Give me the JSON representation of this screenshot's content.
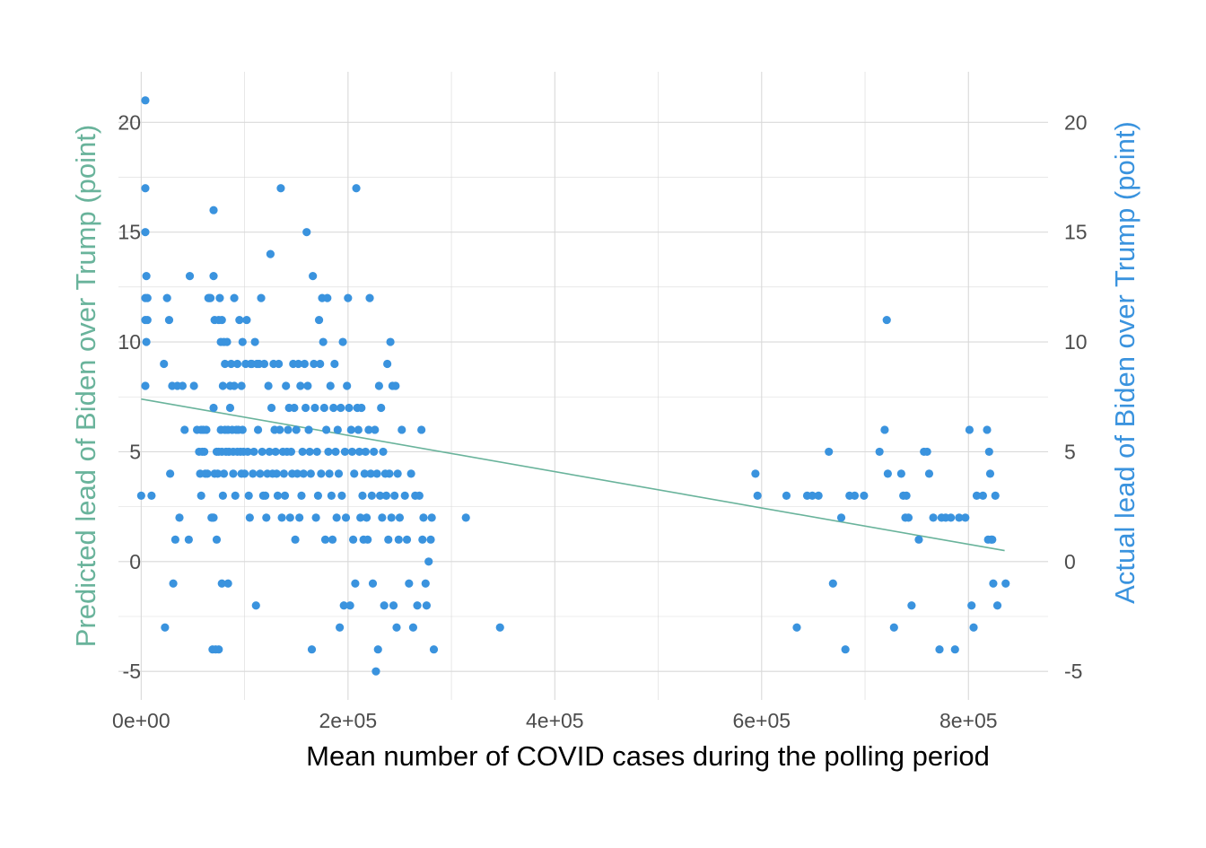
{
  "chart_data": {
    "type": "scatter",
    "xlabel": "Mean number of COVID cases during the polling period",
    "ylabel_left": "Predicted lead of Biden over Trump (point)",
    "ylabel_right": "Actual lead of Biden over Trump (point)",
    "xlim": [
      -22000,
      877000
    ],
    "ylim": [
      -6.3,
      22.3
    ],
    "x_ticks": [
      0,
      200000,
      400000,
      600000,
      800000
    ],
    "x_tick_labels": [
      "0e+00",
      "2e+05",
      "4e+05",
      "6e+05",
      "8e+05"
    ],
    "y_ticks": [
      -5,
      0,
      5,
      10,
      15,
      20
    ],
    "y_tick_labels": [
      "-5",
      "0",
      "5",
      "10",
      "15",
      "20"
    ],
    "grid": true,
    "colors": {
      "points": "#3a93de",
      "trend": "#69b39b",
      "left_axis_title": "#69b39b",
      "right_axis_title": "#3a93de"
    },
    "trend_line": {
      "x": [
        0,
        835000
      ],
      "y": [
        7.4,
        0.5
      ]
    },
    "points": [
      [
        0,
        3
      ],
      [
        4000,
        21
      ],
      [
        4000,
        17
      ],
      [
        4000,
        15
      ],
      [
        4000,
        12
      ],
      [
        4000,
        11
      ],
      [
        4000,
        8
      ],
      [
        5000,
        10
      ],
      [
        5000,
        13
      ],
      [
        6000,
        12
      ],
      [
        6000,
        11
      ],
      [
        10000,
        3
      ],
      [
        22000,
        9
      ],
      [
        23000,
        -3
      ],
      [
        25000,
        12
      ],
      [
        27000,
        11
      ],
      [
        28000,
        4
      ],
      [
        30000,
        8
      ],
      [
        31000,
        -1
      ],
      [
        33000,
        1
      ],
      [
        35000,
        8
      ],
      [
        37000,
        2
      ],
      [
        40000,
        8
      ],
      [
        42000,
        6
      ],
      [
        46000,
        1
      ],
      [
        47000,
        13
      ],
      [
        51000,
        8
      ],
      [
        54000,
        6
      ],
      [
        56000,
        5
      ],
      [
        57000,
        4
      ],
      [
        58000,
        3
      ],
      [
        58000,
        6
      ],
      [
        59000,
        5
      ],
      [
        60000,
        6
      ],
      [
        61000,
        5
      ],
      [
        62000,
        4
      ],
      [
        63000,
        6
      ],
      [
        64000,
        4
      ],
      [
        65000,
        12
      ],
      [
        66000,
        12
      ],
      [
        67000,
        12
      ],
      [
        68000,
        2
      ],
      [
        69000,
        2
      ],
      [
        69000,
        -4
      ],
      [
        70000,
        16
      ],
      [
        70000,
        13
      ],
      [
        70000,
        7
      ],
      [
        70000,
        2
      ],
      [
        71000,
        11
      ],
      [
        71000,
        4
      ],
      [
        72000,
        -4
      ],
      [
        73000,
        1
      ],
      [
        73000,
        5
      ],
      [
        74000,
        4
      ],
      [
        75000,
        11
      ],
      [
        75000,
        5
      ],
      [
        75000,
        -4
      ],
      [
        76000,
        12
      ],
      [
        77000,
        6
      ],
      [
        77000,
        10
      ],
      [
        78000,
        11
      ],
      [
        78000,
        5
      ],
      [
        78000,
        -1
      ],
      [
        79000,
        8
      ],
      [
        79000,
        3
      ],
      [
        80000,
        10
      ],
      [
        80000,
        4
      ],
      [
        81000,
        9
      ],
      [
        81000,
        6
      ],
      [
        82000,
        5
      ],
      [
        83000,
        10
      ],
      [
        84000,
        6
      ],
      [
        84000,
        -1
      ],
      [
        85000,
        5
      ],
      [
        86000,
        7
      ],
      [
        86000,
        8
      ],
      [
        87000,
        9
      ],
      [
        88000,
        6
      ],
      [
        89000,
        5
      ],
      [
        89000,
        4
      ],
      [
        90000,
        12
      ],
      [
        90000,
        8
      ],
      [
        91000,
        3
      ],
      [
        92000,
        6
      ],
      [
        93000,
        9
      ],
      [
        93000,
        5
      ],
      [
        94000,
        6
      ],
      [
        95000,
        11
      ],
      [
        96000,
        5
      ],
      [
        97000,
        4
      ],
      [
        97000,
        8
      ],
      [
        98000,
        10
      ],
      [
        98000,
        6
      ],
      [
        99000,
        5
      ],
      [
        100000,
        4
      ],
      [
        101000,
        9
      ],
      [
        102000,
        11
      ],
      [
        103000,
        5
      ],
      [
        104000,
        3
      ],
      [
        105000,
        2
      ],
      [
        106000,
        9
      ],
      [
        107000,
        9
      ],
      [
        108000,
        4
      ],
      [
        109000,
        5
      ],
      [
        110000,
        10
      ],
      [
        111000,
        -2
      ],
      [
        112000,
        9
      ],
      [
        113000,
        6
      ],
      [
        114000,
        9
      ],
      [
        115000,
        4
      ],
      [
        116000,
        12
      ],
      [
        117000,
        5
      ],
      [
        118000,
        3
      ],
      [
        119000,
        9
      ],
      [
        120000,
        3
      ],
      [
        121000,
        2
      ],
      [
        122000,
        4
      ],
      [
        123000,
        8
      ],
      [
        124000,
        5
      ],
      [
        125000,
        14
      ],
      [
        126000,
        7
      ],
      [
        127000,
        4
      ],
      [
        128000,
        9
      ],
      [
        129000,
        6
      ],
      [
        130000,
        5
      ],
      [
        131000,
        4
      ],
      [
        132000,
        3
      ],
      [
        133000,
        9
      ],
      [
        134000,
        6
      ],
      [
        135000,
        17
      ],
      [
        136000,
        2
      ],
      [
        137000,
        5
      ],
      [
        138000,
        4
      ],
      [
        139000,
        3
      ],
      [
        140000,
        8
      ],
      [
        141000,
        5
      ],
      [
        142000,
        6
      ],
      [
        143000,
        7
      ],
      [
        144000,
        2
      ],
      [
        145000,
        5
      ],
      [
        146000,
        4
      ],
      [
        147000,
        9
      ],
      [
        148000,
        7
      ],
      [
        149000,
        1
      ],
      [
        150000,
        6
      ],
      [
        151000,
        4
      ],
      [
        152000,
        9
      ],
      [
        153000,
        2
      ],
      [
        154000,
        8
      ],
      [
        155000,
        3
      ],
      [
        156000,
        5
      ],
      [
        157000,
        4
      ],
      [
        158000,
        9
      ],
      [
        159000,
        7
      ],
      [
        160000,
        15
      ],
      [
        161000,
        8
      ],
      [
        162000,
        6
      ],
      [
        163000,
        5
      ],
      [
        164000,
        4
      ],
      [
        165000,
        -4
      ],
      [
        166000,
        13
      ],
      [
        167000,
        9
      ],
      [
        168000,
        7
      ],
      [
        169000,
        2
      ],
      [
        170000,
        5
      ],
      [
        171000,
        3
      ],
      [
        172000,
        11
      ],
      [
        173000,
        9
      ],
      [
        174000,
        4
      ],
      [
        175000,
        12
      ],
      [
        176000,
        10
      ],
      [
        177000,
        7
      ],
      [
        178000,
        1
      ],
      [
        179000,
        6
      ],
      [
        180000,
        12
      ],
      [
        181000,
        5
      ],
      [
        182000,
        4
      ],
      [
        183000,
        8
      ],
      [
        184000,
        3
      ],
      [
        185000,
        1
      ],
      [
        186000,
        7
      ],
      [
        187000,
        9
      ],
      [
        188000,
        5
      ],
      [
        189000,
        2
      ],
      [
        190000,
        6
      ],
      [
        191000,
        4
      ],
      [
        192000,
        -3
      ],
      [
        193000,
        7
      ],
      [
        194000,
        3
      ],
      [
        195000,
        10
      ],
      [
        196000,
        -2
      ],
      [
        197000,
        5
      ],
      [
        198000,
        2
      ],
      [
        199000,
        8
      ],
      [
        200000,
        12
      ],
      [
        201000,
        7
      ],
      [
        202000,
        -2
      ],
      [
        203000,
        6
      ],
      [
        204000,
        5
      ],
      [
        205000,
        1
      ],
      [
        206000,
        4
      ],
      [
        207000,
        -1
      ],
      [
        208000,
        17
      ],
      [
        209000,
        7
      ],
      [
        210000,
        6
      ],
      [
        211000,
        5
      ],
      [
        212000,
        2
      ],
      [
        213000,
        7
      ],
      [
        214000,
        3
      ],
      [
        215000,
        1
      ],
      [
        216000,
        4
      ],
      [
        217000,
        5
      ],
      [
        218000,
        2
      ],
      [
        219000,
        1
      ],
      [
        220000,
        6
      ],
      [
        221000,
        12
      ],
      [
        222000,
        4
      ],
      [
        223000,
        3
      ],
      [
        224000,
        -1
      ],
      [
        225000,
        5
      ],
      [
        226000,
        6
      ],
      [
        227000,
        -5
      ],
      [
        228000,
        4
      ],
      [
        229000,
        -4
      ],
      [
        230000,
        8
      ],
      [
        231000,
        3
      ],
      [
        232000,
        7
      ],
      [
        233000,
        2
      ],
      [
        234000,
        5
      ],
      [
        235000,
        -2
      ],
      [
        236000,
        4
      ],
      [
        237000,
        3
      ],
      [
        238000,
        9
      ],
      [
        239000,
        1
      ],
      [
        240000,
        4
      ],
      [
        241000,
        10
      ],
      [
        242000,
        2
      ],
      [
        243000,
        8
      ],
      [
        244000,
        -2
      ],
      [
        245000,
        3
      ],
      [
        246000,
        8
      ],
      [
        247000,
        -3
      ],
      [
        248000,
        4
      ],
      [
        249000,
        1
      ],
      [
        250000,
        2
      ],
      [
        252000,
        6
      ],
      [
        255000,
        3
      ],
      [
        257000,
        1
      ],
      [
        259000,
        -1
      ],
      [
        261000,
        4
      ],
      [
        263000,
        -3
      ],
      [
        265000,
        3
      ],
      [
        267000,
        -2
      ],
      [
        269000,
        3
      ],
      [
        271000,
        6
      ],
      [
        272000,
        1
      ],
      [
        273000,
        2
      ],
      [
        275000,
        -1
      ],
      [
        276000,
        -2
      ],
      [
        278000,
        0
      ],
      [
        280000,
        1
      ],
      [
        281000,
        2
      ],
      [
        283000,
        -4
      ],
      [
        314000,
        2
      ],
      [
        347000,
        -3
      ],
      [
        594000,
        4
      ],
      [
        596000,
        3
      ],
      [
        624000,
        3
      ],
      [
        634000,
        -3
      ],
      [
        644000,
        3
      ],
      [
        649000,
        3
      ],
      [
        655000,
        3
      ],
      [
        665000,
        5
      ],
      [
        669000,
        -1
      ],
      [
        677000,
        2
      ],
      [
        681000,
        -4
      ],
      [
        685000,
        3
      ],
      [
        690000,
        3
      ],
      [
        699000,
        3
      ],
      [
        714000,
        5
      ],
      [
        719000,
        6
      ],
      [
        721000,
        11
      ],
      [
        722000,
        4
      ],
      [
        728000,
        -3
      ],
      [
        735000,
        4
      ],
      [
        737000,
        3
      ],
      [
        739000,
        2
      ],
      [
        740000,
        3
      ],
      [
        742000,
        2
      ],
      [
        745000,
        -2
      ],
      [
        752000,
        1
      ],
      [
        757000,
        5
      ],
      [
        760000,
        5
      ],
      [
        762000,
        4
      ],
      [
        766000,
        2
      ],
      [
        772000,
        -4
      ],
      [
        774000,
        2
      ],
      [
        778000,
        2
      ],
      [
        783000,
        2
      ],
      [
        787000,
        -4
      ],
      [
        791000,
        2
      ],
      [
        797000,
        2
      ],
      [
        801000,
        6
      ],
      [
        803000,
        -2
      ],
      [
        805000,
        -3
      ],
      [
        808000,
        3
      ],
      [
        814000,
        3
      ],
      [
        818000,
        6
      ],
      [
        819000,
        1
      ],
      [
        820000,
        5
      ],
      [
        821000,
        4
      ],
      [
        822000,
        1
      ],
      [
        823000,
        1
      ],
      [
        824000,
        -1
      ],
      [
        826000,
        3
      ],
      [
        828000,
        -2
      ],
      [
        836000,
        -1
      ]
    ]
  }
}
